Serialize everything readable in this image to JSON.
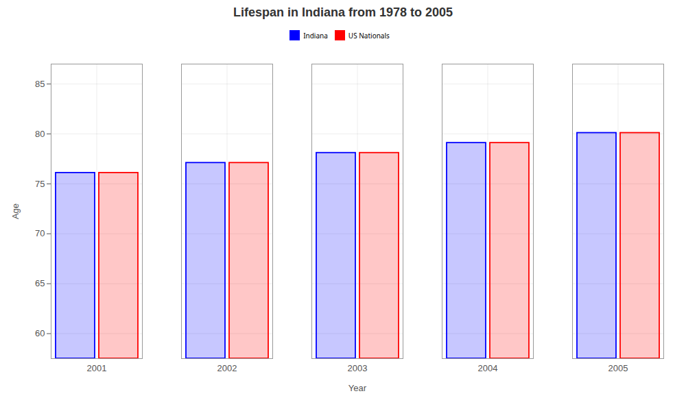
{
  "chart_data": {
    "type": "bar",
    "title": "Lifespan in Indiana from 1978 to 2005",
    "xlabel": "Year",
    "ylabel": "Age",
    "categories": [
      2001,
      2002,
      2003,
      2004,
      2005
    ],
    "series": [
      {
        "name": "Indiana",
        "color": "#0000ff",
        "values": [
          76.1,
          77.1,
          78.1,
          79.1,
          80.1
        ]
      },
      {
        "name": "US Nationals",
        "color": "#ff0000",
        "values": [
          76.1,
          77.1,
          78.1,
          79.1,
          80.1
        ]
      }
    ],
    "ylim": [
      57.5,
      87
    ],
    "yticks": [
      60,
      65,
      70,
      75,
      80,
      85
    ],
    "grid": true,
    "legend": "top"
  }
}
